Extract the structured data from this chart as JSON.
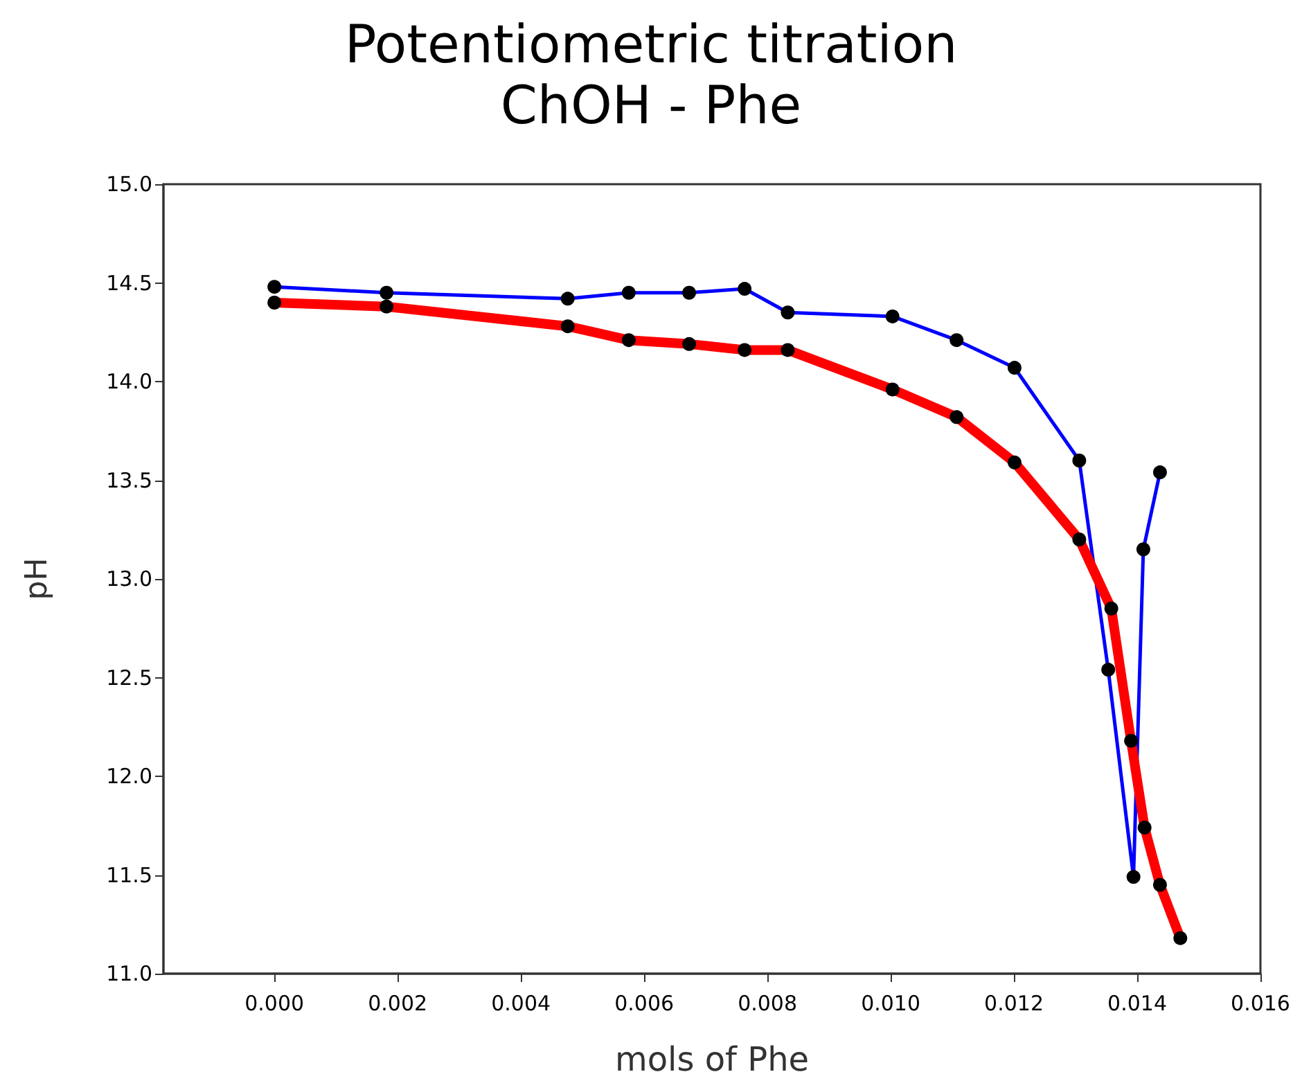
{
  "chart_data": {
    "type": "line",
    "title": "Potentiometric titration",
    "subtitle": "ChOH - Phe",
    "xlabel": "mols of Phe",
    "ylabel": "pH",
    "series": [
      {
        "color": "#0000ff",
        "x": [
          0,
          0.00182,
          0.00476,
          0.00575,
          0.00673,
          0.00763,
          0.00833,
          0.01003,
          0.01107,
          0.01201,
          0.01306,
          0.01353,
          0.01394,
          0.0141,
          0.01437
        ],
        "values": [
          14.48,
          14.45,
          14.42,
          14.45,
          14.45,
          14.47,
          14.35,
          14.33,
          14.21,
          14.07,
          13.6,
          12.54,
          11.49,
          13.15,
          13.54
        ]
      },
      {
        "color": "#ff0000",
        "x": [
          0,
          0.00182,
          0.00476,
          0.00575,
          0.00673,
          0.00763,
          0.00833,
          0.01003,
          0.01107,
          0.01201,
          0.01306,
          0.01358,
          0.0139,
          0.01412,
          0.01437,
          0.0147
        ],
        "values": [
          14.4,
          14.38,
          14.28,
          14.21,
          14.19,
          14.16,
          14.16,
          13.96,
          13.82,
          13.59,
          13.2,
          12.85,
          12.18,
          11.74,
          11.45,
          11.18
        ]
      }
    ],
    "xlim": [
      -0.0018,
      0.016
    ],
    "xticks": [
      {
        "value": 0,
        "label": "0.000"
      },
      {
        "value": 0.002,
        "label": "0.002"
      },
      {
        "value": 0.004,
        "label": "0.004"
      },
      {
        "value": 0.006,
        "label": "0.006"
      },
      {
        "value": 0.008,
        "label": "0.008"
      },
      {
        "value": 0.01,
        "label": "0.010"
      },
      {
        "value": 0.012,
        "label": "0.012"
      },
      {
        "value": 0.014,
        "label": "0.014"
      },
      {
        "value": 0.016,
        "label": "0.016"
      }
    ],
    "ylim": [
      11,
      15
    ],
    "yticks": [
      {
        "value": 11,
        "label": "11.0"
      },
      {
        "value": 11.5,
        "label": "11.5"
      },
      {
        "value": 12,
        "label": "12.0"
      },
      {
        "value": 12.5,
        "label": "12.5"
      },
      {
        "value": 13,
        "label": "13.0"
      },
      {
        "value": 13.5,
        "label": "13.5"
      },
      {
        "value": 14,
        "label": "14.0"
      },
      {
        "value": 14.5,
        "label": "14.5"
      },
      {
        "value": 15,
        "label": "15.0"
      }
    ],
    "grid": false,
    "marker": "circle",
    "line_style": "solid"
  }
}
